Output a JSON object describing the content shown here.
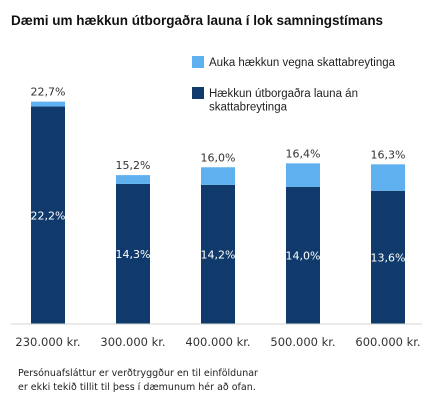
{
  "chart_data": {
    "type": "bar",
    "stacked": true,
    "title": "Dæmi um hækkun útborgaðra launa í lok samningstímans",
    "categories": [
      "230.000 kr.",
      "300.000 kr.",
      "400.000 kr.",
      "500.000 kr.",
      "600.000 kr."
    ],
    "series": [
      {
        "name": "Hækkun útborgaðra launa án skattabreytinga",
        "values": [
          22.2,
          14.3,
          14.2,
          14.0,
          13.6
        ],
        "labels": [
          "22,2%",
          "14,3%",
          "14,2%",
          "14,0%",
          "13,6%"
        ],
        "color": "#0f3a6b"
      },
      {
        "name": "Auka hækkun vegna skattabreytinga",
        "values": [
          0.5,
          0.9,
          1.8,
          2.4,
          2.7
        ],
        "color": "#5fb0ee"
      }
    ],
    "totals": [
      22.7,
      15.2,
      16.0,
      16.4,
      16.3
    ],
    "total_labels": [
      "22,7%",
      "15,2%",
      "16,0%",
      "16,4%",
      "16,3%"
    ],
    "legend": {
      "position": "top-right",
      "entries": [
        {
          "name": "Auka hækkun vegna skattabreytinga",
          "lines": [
            "Auka hækkun vegna skattabreytinga"
          ],
          "color": "#5fb0ee"
        },
        {
          "name": "Hækkun útborgaðra launa án skattabreytinga",
          "lines": [
            "Hækkun útborgaðra launa án",
            "skattabreytinga"
          ],
          "color": "#0f3a6b"
        }
      ]
    },
    "ylim": [
      0,
      24.5
    ],
    "grid": false
  },
  "note": {
    "lines": [
      "Persónuafsláttur er verðtryggður en til einföldunar",
      "er ekki tekið tillit til þess í dæmunum hér að ofan."
    ]
  }
}
